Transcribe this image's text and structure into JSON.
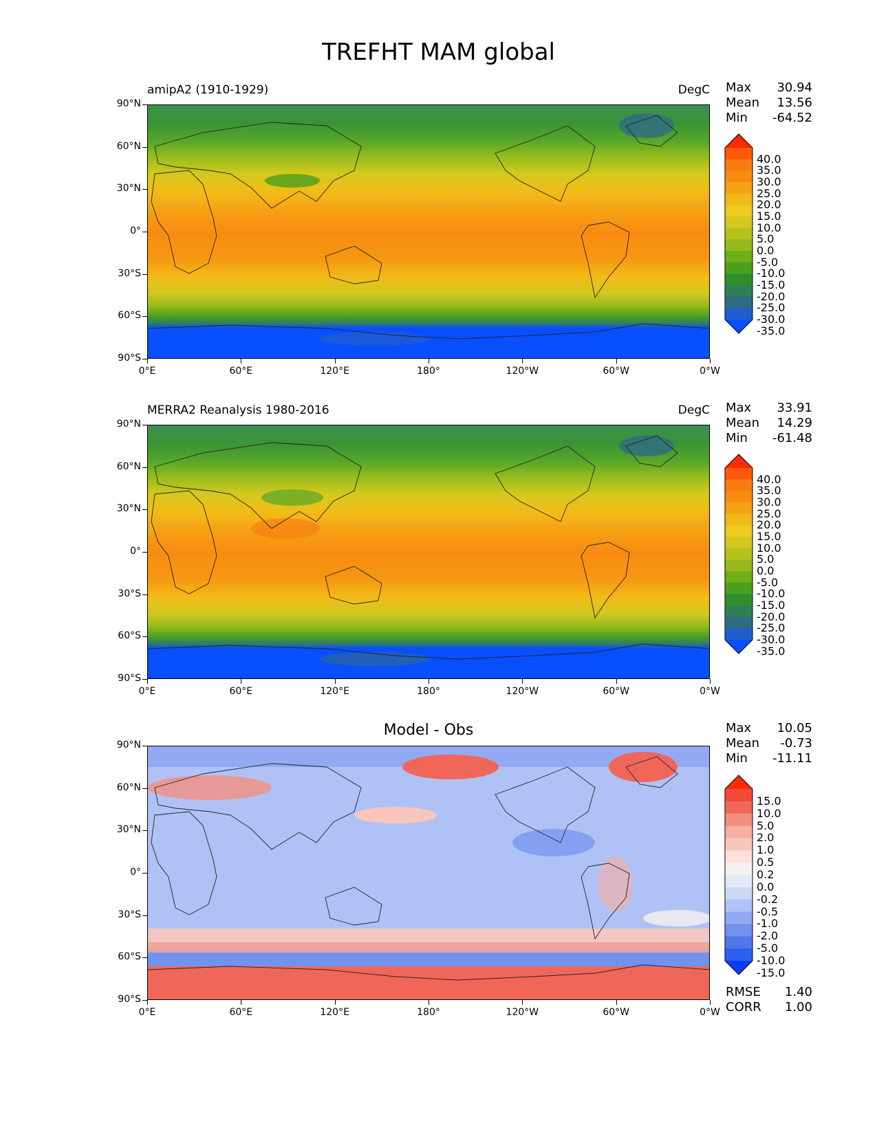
{
  "figure_title": "TREFHT MAM global",
  "xticks": [
    "0°E",
    "60°E",
    "120°E",
    "180°",
    "120°W",
    "60°W",
    "0°W"
  ],
  "yticks": [
    "90°N",
    "60°N",
    "30°N",
    "0°",
    "30°S",
    "60°S",
    "90°S"
  ],
  "panels": [
    {
      "title_left": "amipA2 (1910-1929)",
      "units": "DegC",
      "stats": {
        "max_label": "Max",
        "max": "30.94",
        "mean_label": "Mean",
        "mean": "13.56",
        "min_label": "Min",
        "min": "-64.52"
      },
      "colorbar_levels": [
        "40.0",
        "35.0",
        "30.0",
        "25.0",
        "20.0",
        "15.0",
        "10.0",
        "5.0",
        "0.0",
        "-5.0",
        "-10.0",
        "-15.0",
        "-20.0",
        "-25.0",
        "-30.0",
        "-35.0"
      ],
      "colorbar_colors": [
        "#ff2a00",
        "#fa5a0a",
        "#f97a10",
        "#f88c12",
        "#f6a214",
        "#f4b818",
        "#eccd1e",
        "#d2c820",
        "#b6c21c",
        "#97ba1a",
        "#6faf1a",
        "#4a9f1e",
        "#2f8f2c",
        "#2d7f55",
        "#2e6c86",
        "#1f5ecc",
        "#0a4fff"
      ]
    },
    {
      "title_left": "MERRA2 Reanalysis 1980-2016",
      "units": "DegC",
      "stats": {
        "max_label": "Max",
        "max": "33.91",
        "mean_label": "Mean",
        "mean": "14.29",
        "min_label": "Min",
        "min": "-61.48"
      },
      "colorbar_levels": [
        "40.0",
        "35.0",
        "30.0",
        "25.0",
        "20.0",
        "15.0",
        "10.0",
        "5.0",
        "0.0",
        "-5.0",
        "-10.0",
        "-15.0",
        "-20.0",
        "-25.0",
        "-30.0",
        "-35.0"
      ],
      "colorbar_colors": [
        "#ff2a00",
        "#fa5a0a",
        "#f97a10",
        "#f88c12",
        "#f6a214",
        "#f4b818",
        "#eccd1e",
        "#d2c820",
        "#b6c21c",
        "#97ba1a",
        "#6faf1a",
        "#4a9f1e",
        "#2f8f2c",
        "#2d7f55",
        "#2e6c86",
        "#1f5ecc",
        "#0a4fff"
      ]
    },
    {
      "title_center": "Model - Obs",
      "stats": {
        "max_label": "Max",
        "max": "10.05",
        "mean_label": "Mean",
        "mean": "-0.73",
        "min_label": "Min",
        "min": "-11.11"
      },
      "colorbar_levels": [
        "15.0",
        "10.0",
        "5.0",
        "2.0",
        "1.0",
        "0.5",
        "0.2",
        "0.0",
        "-0.2",
        "-0.5",
        "-1.0",
        "-2.0",
        "-5.0",
        "-10.0",
        "-15.0"
      ],
      "colorbar_colors": [
        "#ff2a00",
        "#f14a3a",
        "#f0675a",
        "#f48e80",
        "#f7ada2",
        "#f9c6bd",
        "#fbe0db",
        "#f6f1f1",
        "#e5e8f6",
        "#cdd8f6",
        "#b0c2f5",
        "#93aaf2",
        "#7292ee",
        "#4f78ea",
        "#2b5ff2",
        "#0a3cff"
      ],
      "rmse_label": "RMSE",
      "rmse": "1.40",
      "corr_label": "CORR",
      "corr": "1.00"
    }
  ]
}
